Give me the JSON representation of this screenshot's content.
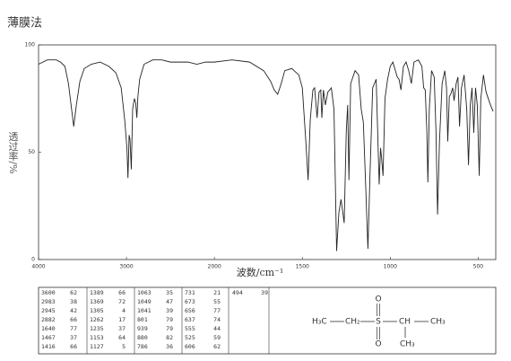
{
  "title": "薄膜法",
  "chart_data": {
    "type": "line",
    "color": "#222",
    "x_label": "波数/cm⁻¹",
    "y_label": "透过率/%",
    "xscale": "tick-spaced",
    "xlim": [
      4000,
      400
    ],
    "xticks": [
      4000,
      3000,
      2000,
      1500,
      1000,
      500
    ],
    "ylim": [
      0,
      100
    ],
    "yticks": [
      0,
      50,
      100
    ],
    "x": [
      4000,
      3900,
      3800,
      3750,
      3700,
      3660,
      3630,
      3600,
      3570,
      3530,
      3480,
      3400,
      3300,
      3200,
      3120,
      3060,
      3020,
      2995,
      2983,
      2970,
      2960,
      2945,
      2930,
      2910,
      2895,
      2882,
      2870,
      2850,
      2800,
      2700,
      2600,
      2500,
      2400,
      2300,
      2200,
      2100,
      2000,
      1900,
      1800,
      1720,
      1680,
      1660,
      1640,
      1620,
      1600,
      1560,
      1520,
      1500,
      1480,
      1467,
      1455,
      1440,
      1430,
      1416,
      1405,
      1395,
      1389,
      1380,
      1369,
      1355,
      1335,
      1320,
      1305,
      1292,
      1280,
      1270,
      1262,
      1250,
      1242,
      1235,
      1225,
      1200,
      1180,
      1165,
      1153,
      1140,
      1127,
      1115,
      1100,
      1080,
      1063,
      1055,
      1049,
      1041,
      1030,
      1015,
      1000,
      985,
      960,
      950,
      939,
      925,
      910,
      895,
      880,
      865,
      840,
      820,
      810,
      801,
      792,
      786,
      778,
      765,
      750,
      740,
      731,
      720,
      705,
      690,
      680,
      673,
      664,
      656,
      645,
      637,
      625,
      615,
      606,
      595,
      580,
      565,
      555,
      545,
      535,
      525,
      515,
      505,
      494,
      485,
      470,
      455,
      430,
      415
    ],
    "values": [
      91,
      93,
      93,
      92,
      90,
      82,
      72,
      62,
      72,
      83,
      89,
      91,
      92,
      90,
      87,
      80,
      65,
      52,
      38,
      58,
      56,
      42,
      70,
      75,
      73,
      66,
      76,
      84,
      91,
      93,
      93,
      92,
      92,
      92,
      91,
      92,
      92,
      93,
      92,
      88,
      83,
      79,
      77,
      82,
      88,
      89,
      86,
      80,
      55,
      37,
      65,
      79,
      80,
      66,
      78,
      79,
      66,
      79,
      72,
      78,
      80,
      70,
      4,
      22,
      28,
      22,
      17,
      60,
      72,
      37,
      82,
      88,
      86,
      70,
      64,
      35,
      5,
      40,
      80,
      84,
      35,
      52,
      47,
      39,
      75,
      84,
      90,
      92,
      85,
      84,
      79,
      90,
      92,
      88,
      82,
      92,
      93,
      90,
      80,
      79,
      60,
      36,
      70,
      88,
      85,
      60,
      21,
      55,
      82,
      88,
      80,
      55,
      76,
      77,
      80,
      74,
      82,
      85,
      62,
      80,
      86,
      70,
      44,
      72,
      80,
      59,
      80,
      72,
      39,
      75,
      86,
      78,
      72,
      69
    ]
  },
  "peak_table": {
    "columns": [
      [
        [
          "3600",
          "62"
        ],
        [
          "2983",
          "38"
        ],
        [
          "2945",
          "42"
        ],
        [
          "2882",
          "66"
        ],
        [
          "1640",
          "77"
        ],
        [
          "1467",
          "37"
        ],
        [
          "1416",
          "66"
        ]
      ],
      [
        [
          "1389",
          "66"
        ],
        [
          "1369",
          "72"
        ],
        [
          "1305",
          "4"
        ],
        [
          "1262",
          "17"
        ],
        [
          "1235",
          "37"
        ],
        [
          "1153",
          "64"
        ],
        [
          "1127",
          "5"
        ]
      ],
      [
        [
          "1063",
          "35"
        ],
        [
          "1049",
          "47"
        ],
        [
          "1041",
          "39"
        ],
        [
          "801",
          "79"
        ],
        [
          "939",
          "79"
        ],
        [
          "880",
          "82"
        ],
        [
          "786",
          "36"
        ]
      ],
      [
        [
          "731",
          "21"
        ],
        [
          "673",
          "55"
        ],
        [
          "656",
          "77"
        ],
        [
          "637",
          "74"
        ],
        [
          "555",
          "44"
        ],
        [
          "525",
          "59"
        ],
        [
          "606",
          "62"
        ]
      ],
      [
        [
          "494",
          "39"
        ]
      ]
    ]
  },
  "structure": {
    "h3c": "H₃C",
    "ch2": "CH₂",
    "s": "S",
    "o_top": "O",
    "o_bottom": "O",
    "ch": "CH",
    "ch3_right": "CH₃",
    "ch3_bottom": "CH₃"
  }
}
